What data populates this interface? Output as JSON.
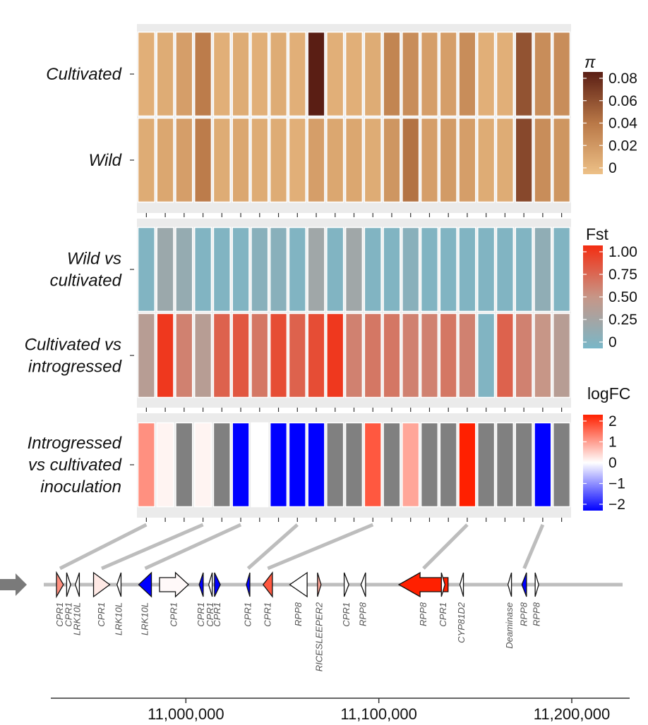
{
  "chart_data": {
    "type": "heatmap",
    "n_columns": 23,
    "panels": [
      {
        "name": "pi",
        "rows": [
          "Cultivated",
          "Wild"
        ],
        "values": [
          [
            0.01,
            0.012,
            0.02,
            0.04,
            0.01,
            0.012,
            0.01,
            0.012,
            0.01,
            0.085,
            0.01,
            0.01,
            0.012,
            0.035,
            0.03,
            0.02,
            0.02,
            0.03,
            0.01,
            0.01,
            0.06,
            0.03,
            0.03
          ],
          [
            0.012,
            0.015,
            0.02,
            0.04,
            0.012,
            0.015,
            0.012,
            0.012,
            0.01,
            0.02,
            0.015,
            0.015,
            0.012,
            0.025,
            0.045,
            0.02,
            0.022,
            0.02,
            0.012,
            0.012,
            0.065,
            0.03,
            0.025
          ]
        ],
        "legend_title": "π",
        "legend_ticks": [
          "0.08",
          "0.06",
          "0.04",
          "0.02",
          "0"
        ],
        "range": [
          0,
          0.085
        ]
      },
      {
        "name": "Fst",
        "rows": [
          "Wild vs cultivated",
          "Cultivated vs introgressed"
        ],
        "values": [
          [
            0.05,
            0.22,
            0.18,
            0.05,
            0.05,
            0.05,
            0.1,
            0.1,
            0.05,
            0.25,
            0.05,
            0.25,
            0.05,
            0.05,
            0.1,
            0.05,
            0.05,
            0.05,
            0.05,
            0.05,
            0.05,
            0.15,
            0.05
          ],
          [
            0.4,
            0.95,
            0.6,
            0.4,
            0.75,
            0.8,
            0.65,
            0.85,
            0.75,
            0.85,
            0.95,
            0.6,
            0.65,
            0.65,
            0.6,
            0.6,
            0.65,
            0.6,
            0.05,
            0.75,
            0.6,
            0.5,
            0.4
          ]
        ],
        "legend_title": "Fst",
        "legend_ticks": [
          "1.00",
          "0.75",
          "0.50",
          "0.25",
          "0"
        ],
        "range": [
          0,
          1
        ]
      },
      {
        "name": "logFC",
        "rows": [
          "Introgressed vs cultivated inoculation"
        ],
        "values": [
          [
            1.0,
            0.1,
            null,
            0.1,
            null,
            -2,
            0.0,
            -2,
            -2,
            -2,
            null,
            null,
            1.5,
            null,
            0.8,
            null,
            null,
            2.0,
            null,
            null,
            null,
            -2,
            null
          ]
        ],
        "legend_title": "logFC",
        "legend_ticks": [
          "2",
          "1",
          "0",
          "−1",
          "−2"
        ],
        "range": [
          -2,
          2
        ]
      }
    ],
    "genes": [
      {
        "label": "CPR1",
        "pos": 0.028,
        "fc": 1.0,
        "dir": "right",
        "w": 0.012
      },
      {
        "label": "CPR1",
        "pos": 0.043,
        "fc": 0.0,
        "dir": "right",
        "w": 0.007
      },
      {
        "label": "LRK10L",
        "pos": 0.058,
        "fc": 0.0,
        "dir": "left",
        "w": 0.007
      },
      {
        "label": "CPR1",
        "pos": 0.1,
        "fc": 0.2,
        "dir": "right",
        "w": 0.028
      },
      {
        "label": "LRK10L",
        "pos": 0.13,
        "fc": 0.0,
        "dir": "left",
        "w": 0.007
      },
      {
        "label": "LRK10L",
        "pos": 0.175,
        "fc": -2,
        "dir": "left",
        "w": 0.022
      },
      {
        "label": "CPR1",
        "pos": 0.225,
        "fc": 0.05,
        "dir": "right",
        "w": 0.05
      },
      {
        "label": "CPR1",
        "pos": 0.272,
        "fc": -2,
        "dir": "left",
        "w": 0.007
      },
      {
        "label": "CPR1",
        "pos": 0.288,
        "fc": 0.0,
        "dir": "left",
        "w": 0.005
      },
      {
        "label": "CPR1",
        "pos": 0.3,
        "fc": -2,
        "dir": "right",
        "w": 0.01
      },
      {
        "label": "CPR1",
        "pos": 0.353,
        "fc": -2,
        "dir": "left",
        "w": 0.006
      },
      {
        "label": "CPR1",
        "pos": 0.387,
        "fc": 1.5,
        "dir": "left",
        "w": 0.016
      },
      {
        "label": "RPP8",
        "pos": 0.44,
        "fc": 0.0,
        "dir": "left",
        "w": 0.03
      },
      {
        "label": "RICESLEEPER2",
        "pos": 0.476,
        "fc": 0.8,
        "dir": "right",
        "w": 0.006
      },
      {
        "label": "CPR1",
        "pos": 0.523,
        "fc": 0.0,
        "dir": "right",
        "w": 0.008
      },
      {
        "label": "RPP8",
        "pos": 0.552,
        "fc": 0.0,
        "dir": "left",
        "w": 0.008
      },
      {
        "label": "RPP8",
        "pos": 0.656,
        "fc": 2.0,
        "dir": "left",
        "w": 0.085
      },
      {
        "label": "CPR1",
        "pos": 0.69,
        "fc": 0.0,
        "dir": "right",
        "w": 0.003
      },
      {
        "label": "CYP81D2",
        "pos": 0.722,
        "fc": 0.0,
        "dir": "left",
        "w": 0.006
      },
      {
        "label": "Deaminase",
        "pos": 0.805,
        "fc": 0.0,
        "dir": "left",
        "w": 0.003
      },
      {
        "label": "RPP8",
        "pos": 0.83,
        "fc": -2,
        "dir": "left",
        "w": 0.008
      },
      {
        "label": "RPP8",
        "pos": 0.852,
        "fc": 0.0,
        "dir": "right",
        "w": 0.003
      }
    ],
    "links": [
      {
        "col": 0,
        "gene": 0
      },
      {
        "col": 3,
        "gene": 3
      },
      {
        "col": 5,
        "gene": 5
      },
      {
        "col": 8,
        "gene": 10
      },
      {
        "col": 12,
        "gene": 11
      },
      {
        "col": 17,
        "gene": 16
      },
      {
        "col": 21,
        "gene": 20
      }
    ],
    "x_axis": {
      "ticks": [
        "11,000,000",
        "11,100,000",
        "11,200,000"
      ],
      "tick_values": [
        11000000,
        11100000,
        11200000
      ],
      "range": [
        10930000,
        11230000
      ]
    },
    "colors": {
      "pi_low": "#EDC087",
      "pi_mid": "#B97847",
      "pi_high": "#5A1E14",
      "fst_low": "#79B7C8",
      "fst_mid": "#C79687",
      "fst_high": "#F32D12",
      "fc_low": "#0000FF",
      "fc_zero": "#FFFFFF",
      "fc_high": "#FF2000",
      "na": "#808080",
      "panel_bg": "#EBEBEB"
    }
  }
}
